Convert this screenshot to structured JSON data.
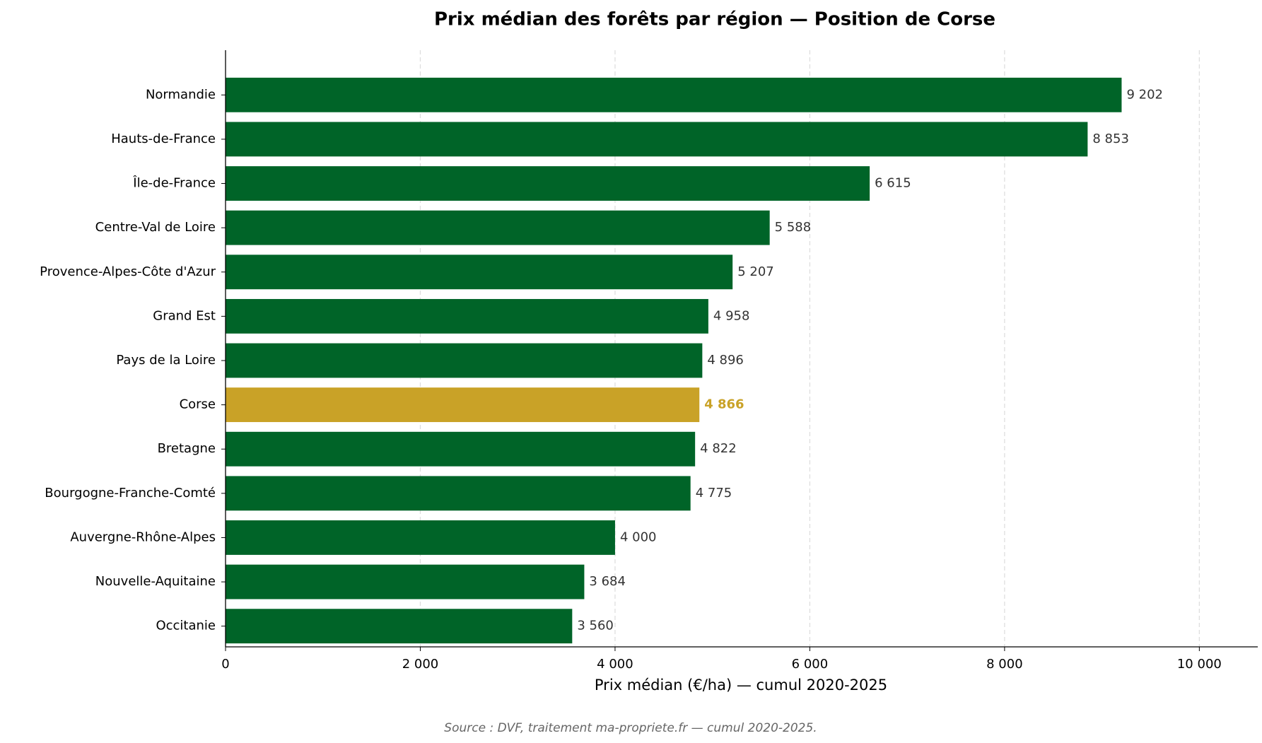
{
  "chart_data": {
    "type": "barh",
    "title": "Prix médian des forêts par région — Position de Corse",
    "x_label": "Prix médian (€/ha) — cumul 2020-2025",
    "source": "Source : DVF, traitement ma-propriete.fr — cumul 2020-2025.",
    "categories": [
      "Normandie",
      "Hauts-de-France",
      "Île-de-France",
      "Centre-Val de Loire",
      "Provence-Alpes-Côte d'Azur",
      "Grand Est",
      "Pays de la Loire",
      "Corse",
      "Bretagne",
      "Bourgogne-Franche-Comté",
      "Auvergne-Rhône-Alpes",
      "Nouvelle-Aquitaine",
      "Occitanie"
    ],
    "values": [
      9202,
      8853,
      6615,
      5588,
      5207,
      4958,
      4896,
      4866,
      4822,
      4775,
      4000,
      3684,
      3560
    ],
    "value_labels": [
      "9 202",
      "8 853",
      "6 615",
      "5 588",
      "5 207",
      "4 958",
      "4 896",
      "4 866",
      "4 822",
      "4 775",
      "4 000",
      "3 684",
      "3 560"
    ],
    "colors": [
      "#006428",
      "#006428",
      "#006428",
      "#006428",
      "#006428",
      "#006428",
      "#006428",
      "#c9a227",
      "#006428",
      "#006428",
      "#006428",
      "#006428",
      "#006428"
    ],
    "highlight": "Corse",
    "xlim": [
      0,
      10600
    ],
    "xticks": [
      0,
      {
        "value": 2000,
        "label": "2 000"
      },
      {
        "value": 4000,
        "label": "4 000"
      },
      {
        "value": 6000,
        "label": "6 000"
      },
      {
        "value": 8000,
        "label": "8 000"
      },
      {
        "value": 10000,
        "label": "10 000"
      }
    ],
    "grid": true
  }
}
